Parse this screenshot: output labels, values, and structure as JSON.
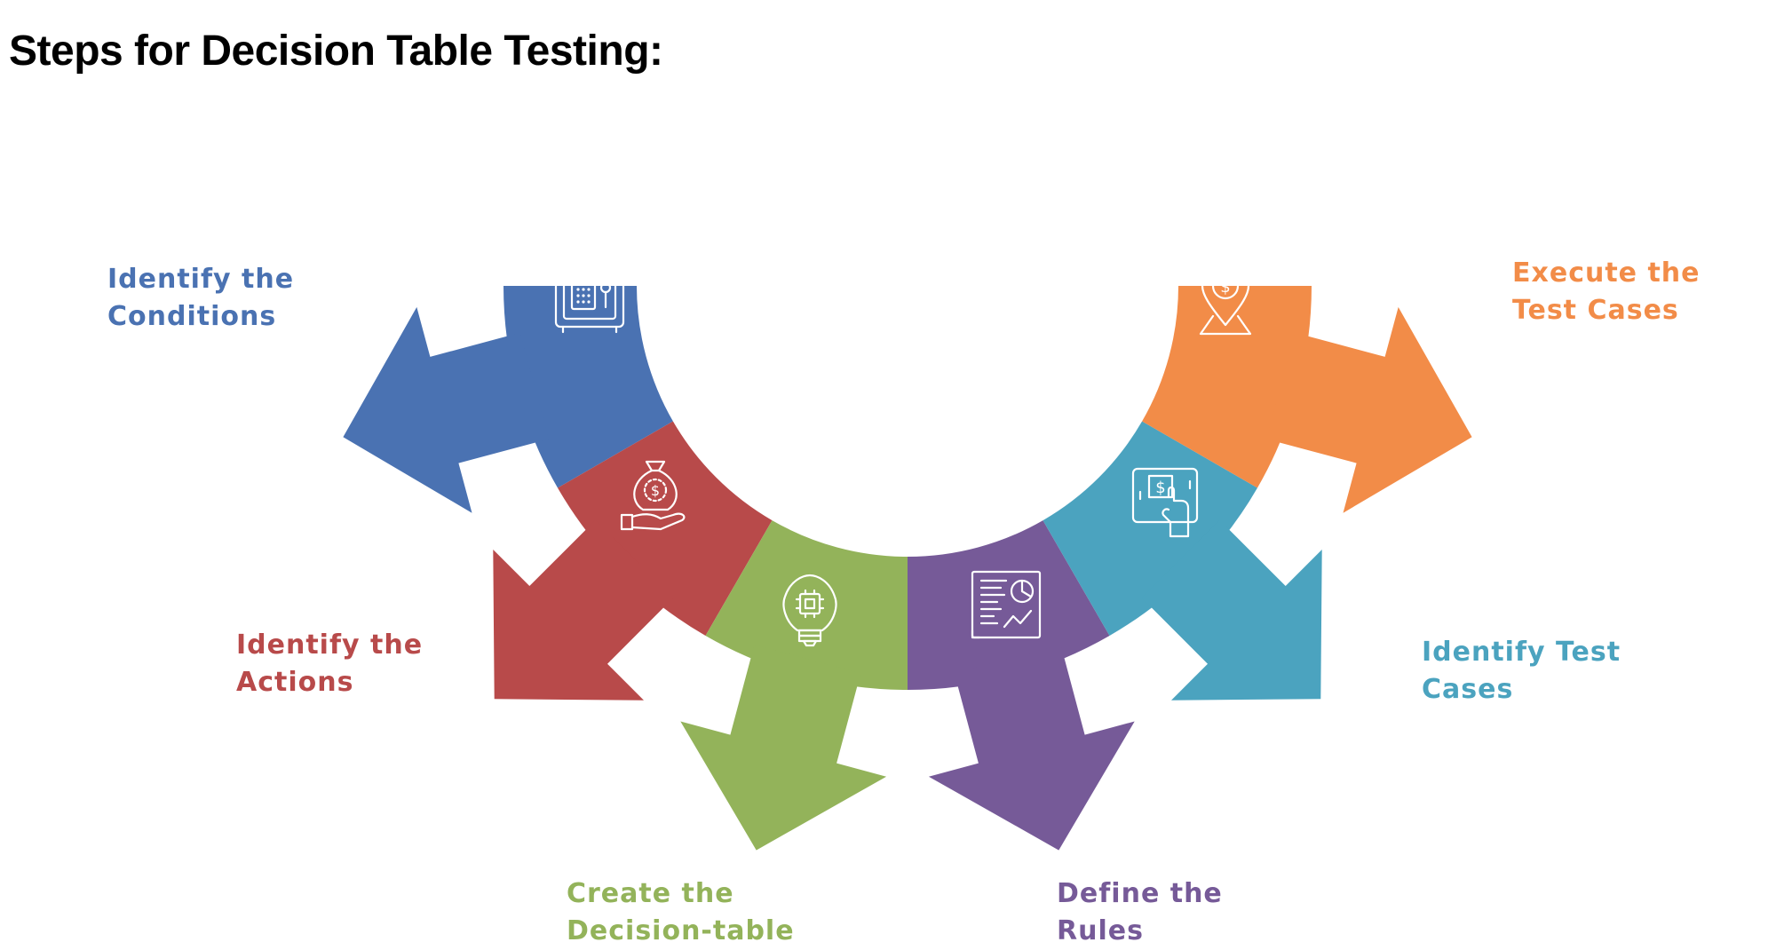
{
  "title": "Steps for Decision Table Testing:",
  "steps": [
    {
      "line1": "Identify the",
      "line2": "Conditions",
      "color": "#4A72B2",
      "icon": "safe-icon"
    },
    {
      "line1": "Identify the",
      "line2": "Actions",
      "color": "#B84A4A",
      "icon": "money-bag-hand-icon"
    },
    {
      "line1": "Create the",
      "line2": "Decision-table",
      "color": "#93B35A",
      "icon": "lightbulb-chip-icon"
    },
    {
      "line1": "Define the",
      "line2": "Rules",
      "color": "#765A98",
      "icon": "report-chart-icon"
    },
    {
      "line1": "Identify Test",
      "line2": "Cases",
      "color": "#4BA3BF",
      "icon": "tablet-payment-icon"
    },
    {
      "line1": "Execute the",
      "line2": "Test Cases",
      "color": "#F28C48",
      "icon": "location-dollar-icon"
    }
  ]
}
